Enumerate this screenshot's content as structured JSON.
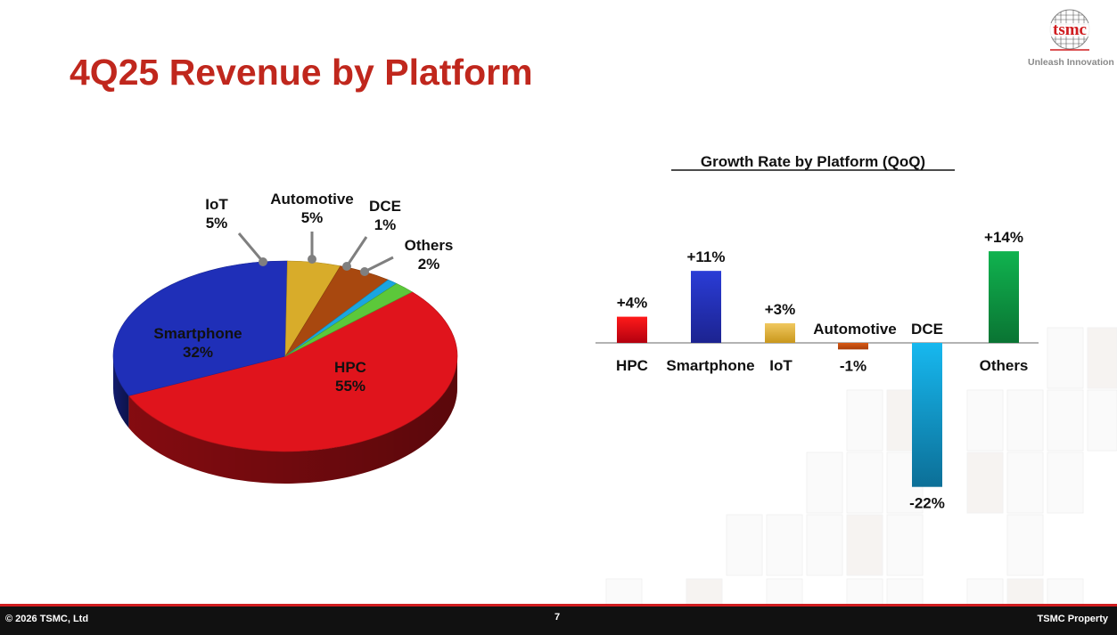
{
  "slide": {
    "title": "4Q25 Revenue by Platform",
    "logo_text": "tsmc",
    "tagline": "Unleash Innovation",
    "footer_left": "© 2026 TSMC, Ltd",
    "page_number": "7",
    "footer_right": "TSMC Property"
  },
  "colors": {
    "title": "#c0271d",
    "HPC": "#e0141c",
    "Smartphone": "#1f2fb8",
    "IoT": "#d8ac2a",
    "Automotive": "#a8480f",
    "DCE": "#1aa5e0",
    "Others": "#5cc83a",
    "bar_Automotive": "#d85a15",
    "bar_DCE": "#14a5db",
    "bar_Others": "#0f9a45",
    "footer": "#111111"
  },
  "chart_data": [
    {
      "type": "pie",
      "categories": [
        "HPC",
        "Smartphone",
        "IoT",
        "Automotive",
        "DCE",
        "Others"
      ],
      "values": [
        55,
        32,
        5,
        5,
        1,
        2
      ],
      "value_labels": [
        "55%",
        "32%",
        "5%",
        "5%",
        "1%",
        "2%"
      ],
      "style": "3d"
    },
    {
      "type": "bar",
      "title": "Growth Rate by Platform (QoQ)",
      "categories": [
        "HPC",
        "Smartphone",
        "IoT",
        "Automotive",
        "DCE",
        "Others"
      ],
      "values": [
        4,
        11,
        3,
        -1,
        -22,
        14
      ],
      "value_labels": [
        "+4%",
        "+11%",
        "+3%",
        "-1%",
        "-22%",
        "+14%"
      ],
      "unit": "%"
    }
  ]
}
